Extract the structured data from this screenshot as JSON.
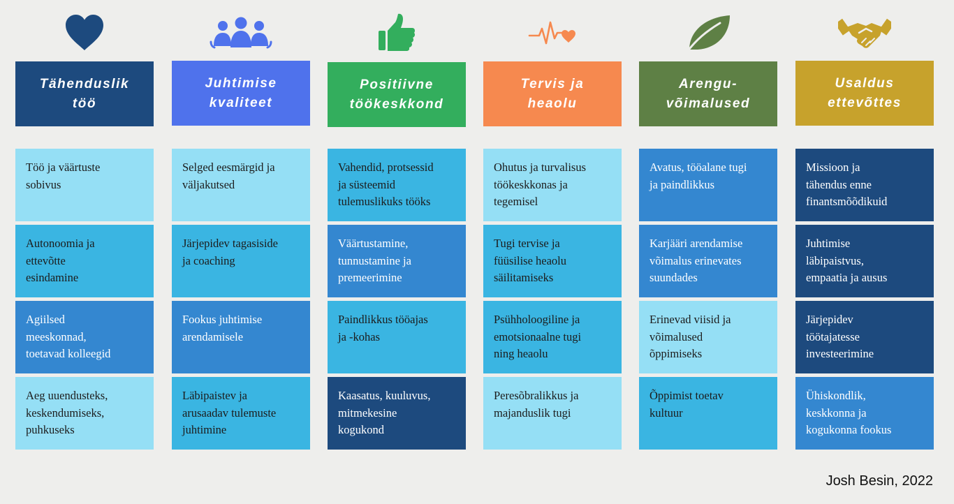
{
  "colors": {
    "light": "#95dff5",
    "mid": "#3ab5e2",
    "blue": "#3487d0",
    "navy": "#1d4a7e"
  },
  "columns": [
    {
      "icon": "heart-icon",
      "header": [
        "Tähenduslik",
        "töö"
      ],
      "header_color": "#1d4a7e",
      "icon_color": "#1d4a7e",
      "cells": [
        {
          "text": "Töö ja väärtuste\nsobivus",
          "shade": "light"
        },
        {
          "text": "Autonoomia ja\nettevõtte\nesindamine",
          "shade": "mid"
        },
        {
          "text": "Agiilsed\nmeeskonnad,\ntoetavad kolleegid",
          "shade": "blue"
        },
        {
          "text": "Aeg uuendusteks,\nkeskendumiseks,\npuhkuseks",
          "shade": "light"
        }
      ]
    },
    {
      "icon": "people-group-icon",
      "header": [
        "Juhtimise",
        "kvaliteet"
      ],
      "header_color": "#4f72ec",
      "icon_color": "#4f72ec",
      "cells": [
        {
          "text": "Selged eesmärgid ja\nväljakutsed",
          "shade": "light"
        },
        {
          "text": "Järjepidev tagasiside\nja coaching",
          "shade": "mid"
        },
        {
          "text": "Fookus juhtimise\narendamisele",
          "shade": "blue"
        },
        {
          "text": "Läbipaistev ja\narusaadav tulemuste\njuhtimine",
          "shade": "mid"
        }
      ]
    },
    {
      "icon": "thumbs-up-icon",
      "header": [
        "Positiivne",
        "töökeskkond"
      ],
      "header_color": "#33ae5d",
      "icon_color": "#33ae5d",
      "cells": [
        {
          "text": "Vahendid, protsessid\nja süsteemid\ntulemuslikuks tööks",
          "shade": "mid"
        },
        {
          "text": "Väärtustamine,\ntunnustamine ja\npremeerimine",
          "shade": "blue"
        },
        {
          "text": "Paindlikkus tööajas\nja -kohas",
          "shade": "mid"
        },
        {
          "text": "Kaasatus, kuuluvus,\nmitmekesine\nkogukond",
          "shade": "navy"
        }
      ]
    },
    {
      "icon": "heartbeat-icon",
      "header": [
        "Tervis ja",
        "heaolu"
      ],
      "header_color": "#f6894f",
      "icon_color": "#f6894f",
      "cells": [
        {
          "text": "Ohutus ja turvalisus\ntöökeskkonas ja\ntegemisel",
          "shade": "light"
        },
        {
          "text": "Tugi tervise ja\nfüüsilise heaolu\nsäilitamiseks",
          "shade": "mid"
        },
        {
          "text": "Psühholoogiline  ja\nemotsionaalne tugi\nning heaolu",
          "shade": "mid"
        },
        {
          "text": "Peresõbralikkus ja\nmajanduslik tugi",
          "shade": "light"
        }
      ]
    },
    {
      "icon": "leaf-icon",
      "header": [
        "Arengu-",
        "võimalused"
      ],
      "header_color": "#5e8045",
      "icon_color": "#5e8045",
      "cells": [
        {
          "text": "Avatus, tööalane tugi\nja paindlikkus",
          "shade": "blue"
        },
        {
          "text": "Karjääri arendamise\nvõimalus erinevates\nsuundades",
          "shade": "blue"
        },
        {
          "text": " Erinevad viisid ja\nvõimalused\nõppimiseks",
          "shade": "light"
        },
        {
          "text": "Õppimist toetav\nkultuur",
          "shade": "mid"
        }
      ]
    },
    {
      "icon": "handshake-icon",
      "header": [
        "Usaldus",
        "ettevõttes"
      ],
      "header_color": "#c7a22c",
      "icon_color": "#c7a22c",
      "cells": [
        {
          "text": "Missioon ja\ntähendus enne\nfinantsmõõdikuid",
          "shade": "navy"
        },
        {
          "text": "Juhtimise\nläbipaistvus,\nempaatia ja ausus",
          "shade": "navy"
        },
        {
          "text": "Järjepidev\ntöötajatesse\ninvesteerimine",
          "shade": "navy"
        },
        {
          "text": "Ühiskondlik,\nkeskkonna ja\nkogukonna fookus",
          "shade": "blue"
        }
      ]
    }
  ],
  "credit": "Josh Besin, 2022"
}
